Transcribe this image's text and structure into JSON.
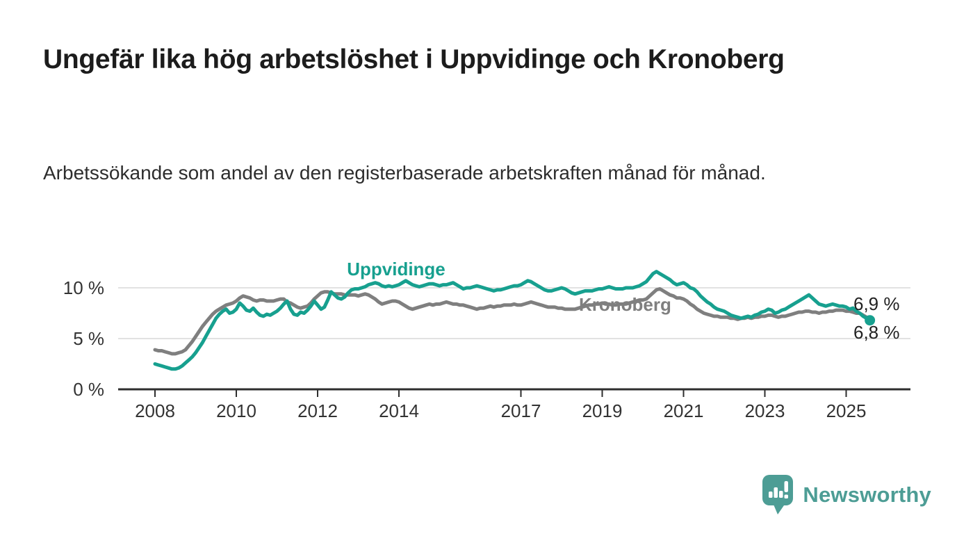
{
  "title": "Ungefär lika hög arbetslöshet i Uppvidinge och Kronoberg",
  "subtitle": "Arbetssökande som andel av den registerbaserade arbetskraften månad för månad.",
  "branding": {
    "logo_text": "Newsworthy",
    "logo_icon": "bar-chart-speech-bubble",
    "logo_color": "#4d9d95"
  },
  "colors": {
    "uppvidinge": "#17a08f",
    "kronoberg": "#7f7f7f",
    "grid": "#d9d9d9",
    "axis": "#2e2e2e",
    "tick_text": "#333333"
  },
  "chart_data": {
    "type": "line",
    "title": "",
    "xlabel": "",
    "ylabel": "",
    "x_unit": "month",
    "x_start": {
      "year": 2008,
      "month": 1
    },
    "x_end": {
      "year": 2025,
      "month": 8
    },
    "x_ticks": [
      2008,
      2010,
      2012,
      2014,
      2017,
      2019,
      2021,
      2023,
      2025
    ],
    "y_ticks": [
      {
        "value": 0,
        "label": "0 %"
      },
      {
        "value": 5,
        "label": "5 %"
      },
      {
        "value": 10,
        "label": "10 %"
      }
    ],
    "ylim": [
      0,
      12.5
    ],
    "grid": "horizontal",
    "legend_position": "inline-labels",
    "series": [
      {
        "name": "Kronoberg",
        "color": "#7f7f7f",
        "end_value_label": "6,9 %",
        "end_marker": false,
        "values": [
          3.9,
          3.8,
          3.8,
          3.7,
          3.6,
          3.5,
          3.5,
          3.6,
          3.7,
          3.9,
          4.3,
          4.7,
          5.2,
          5.7,
          6.2,
          6.6,
          7.0,
          7.4,
          7.7,
          7.9,
          8.1,
          8.3,
          8.4,
          8.5,
          8.7,
          9.0,
          9.2,
          9.1,
          9.0,
          8.8,
          8.7,
          8.8,
          8.8,
          8.7,
          8.7,
          8.7,
          8.8,
          8.9,
          8.9,
          8.6,
          8.5,
          8.3,
          8.1,
          8.0,
          8.1,
          8.2,
          8.5,
          8.9,
          9.2,
          9.5,
          9.6,
          9.6,
          9.5,
          9.4,
          9.4,
          9.4,
          9.3,
          9.3,
          9.3,
          9.3,
          9.2,
          9.3,
          9.4,
          9.3,
          9.1,
          8.9,
          8.6,
          8.4,
          8.5,
          8.6,
          8.7,
          8.7,
          8.6,
          8.4,
          8.2,
          8.0,
          7.9,
          8.0,
          8.1,
          8.2,
          8.3,
          8.4,
          8.3,
          8.4,
          8.4,
          8.5,
          8.6,
          8.5,
          8.4,
          8.4,
          8.3,
          8.3,
          8.2,
          8.1,
          8.0,
          7.9,
          8.0,
          8.0,
          8.1,
          8.2,
          8.1,
          8.2,
          8.2,
          8.3,
          8.3,
          8.3,
          8.4,
          8.3,
          8.3,
          8.4,
          8.5,
          8.6,
          8.5,
          8.4,
          8.3,
          8.2,
          8.1,
          8.1,
          8.1,
          8.0,
          8.0,
          7.9,
          7.9,
          7.9,
          7.9,
          8.0,
          8.1,
          8.2,
          8.3,
          8.3,
          8.4,
          8.4,
          8.5,
          8.4,
          8.4,
          8.3,
          8.3,
          8.4,
          8.4,
          8.4,
          8.5,
          8.6,
          8.7,
          8.8,
          8.8,
          8.9,
          9.2,
          9.5,
          9.8,
          9.9,
          9.7,
          9.5,
          9.3,
          9.2,
          9.0,
          9.0,
          8.9,
          8.7,
          8.4,
          8.2,
          7.9,
          7.7,
          7.5,
          7.4,
          7.3,
          7.2,
          7.2,
          7.1,
          7.1,
          7.1,
          7.0,
          7.0,
          6.9,
          7.0,
          7.0,
          7.1,
          7.0,
          7.1,
          7.1,
          7.2,
          7.2,
          7.3,
          7.3,
          7.2,
          7.1,
          7.2,
          7.2,
          7.3,
          7.4,
          7.5,
          7.6,
          7.6,
          7.7,
          7.7,
          7.6,
          7.6,
          7.5,
          7.6,
          7.6,
          7.7,
          7.7,
          7.8,
          7.8,
          7.8,
          7.7,
          7.7,
          7.6,
          7.5,
          7.5,
          7.3,
          7.1,
          6.9
        ]
      },
      {
        "name": "Uppvidinge",
        "color": "#17a08f",
        "end_value_label": "6,8 %",
        "end_marker": true,
        "values": [
          2.5,
          2.4,
          2.3,
          2.2,
          2.1,
          2.0,
          2.0,
          2.1,
          2.3,
          2.6,
          2.9,
          3.2,
          3.6,
          4.1,
          4.6,
          5.2,
          5.8,
          6.4,
          7.0,
          7.4,
          7.7,
          7.9,
          7.5,
          7.6,
          7.9,
          8.5,
          8.2,
          7.8,
          7.7,
          8.0,
          7.6,
          7.3,
          7.2,
          7.4,
          7.3,
          7.5,
          7.7,
          8.0,
          8.4,
          8.7,
          7.9,
          7.4,
          7.3,
          7.6,
          7.5,
          7.8,
          8.2,
          8.7,
          8.3,
          7.9,
          8.1,
          8.8,
          9.6,
          9.3,
          9.0,
          8.9,
          9.1,
          9.5,
          9.8,
          9.9,
          9.9,
          10.0,
          10.1,
          10.3,
          10.4,
          10.5,
          10.4,
          10.2,
          10.1,
          10.2,
          10.1,
          10.2,
          10.3,
          10.5,
          10.7,
          10.5,
          10.3,
          10.2,
          10.1,
          10.2,
          10.3,
          10.4,
          10.4,
          10.3,
          10.2,
          10.3,
          10.3,
          10.4,
          10.5,
          10.3,
          10.1,
          9.9,
          10.0,
          10.0,
          10.1,
          10.2,
          10.1,
          10.0,
          9.9,
          9.8,
          9.7,
          9.8,
          9.8,
          9.9,
          10.0,
          10.1,
          10.2,
          10.2,
          10.3,
          10.5,
          10.7,
          10.6,
          10.4,
          10.2,
          10.0,
          9.8,
          9.7,
          9.7,
          9.8,
          9.9,
          10.0,
          9.9,
          9.7,
          9.5,
          9.4,
          9.5,
          9.6,
          9.7,
          9.7,
          9.7,
          9.8,
          9.9,
          9.9,
          10.0,
          10.1,
          10.0,
          9.9,
          9.9,
          9.9,
          10.0,
          10.0,
          10.0,
          10.1,
          10.2,
          10.4,
          10.6,
          11.0,
          11.4,
          11.6,
          11.4,
          11.2,
          11.0,
          10.8,
          10.5,
          10.3,
          10.4,
          10.5,
          10.3,
          10.0,
          9.9,
          9.6,
          9.2,
          8.9,
          8.6,
          8.4,
          8.1,
          7.9,
          7.8,
          7.7,
          7.5,
          7.3,
          7.2,
          7.1,
          7.0,
          7.1,
          7.2,
          7.1,
          7.3,
          7.4,
          7.6,
          7.7,
          7.9,
          7.8,
          7.5,
          7.6,
          7.8,
          7.9,
          8.1,
          8.3,
          8.5,
          8.7,
          8.9,
          9.1,
          9.3,
          9.0,
          8.7,
          8.4,
          8.3,
          8.2,
          8.3,
          8.4,
          8.3,
          8.2,
          8.2,
          8.1,
          7.9,
          8.0,
          7.7,
          7.5,
          7.2,
          7.0,
          6.8
        ]
      }
    ],
    "inline_labels": [
      {
        "text": "Uppvidinge",
        "series": "Uppvidinge"
      },
      {
        "text": "Kronoberg",
        "series": "Kronoberg"
      }
    ],
    "end_labels": [
      {
        "text": "6,9 %",
        "series": "Kronoberg"
      },
      {
        "text": "6,8 %",
        "series": "Uppvidinge"
      }
    ]
  }
}
